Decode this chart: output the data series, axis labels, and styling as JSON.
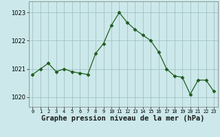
{
  "x": [
    0,
    1,
    2,
    3,
    4,
    5,
    6,
    7,
    8,
    9,
    10,
    11,
    12,
    13,
    14,
    15,
    16,
    17,
    18,
    19,
    20,
    21,
    22,
    23
  ],
  "y": [
    1020.8,
    1021.0,
    1021.2,
    1020.9,
    1021.0,
    1020.9,
    1020.85,
    1020.8,
    1021.55,
    1021.9,
    1022.55,
    1023.0,
    1022.65,
    1022.4,
    1022.2,
    1022.0,
    1021.6,
    1021.0,
    1020.75,
    1020.7,
    1020.1,
    1020.6,
    1020.6,
    1020.2
  ],
  "line_color": "#1e5c1e",
  "marker": "D",
  "marker_size": 2.5,
  "bg_color": "#cce8ea",
  "grid_color": "#99bbbb",
  "xlabel": "Graphe pression niveau de la mer (hPa)",
  "xlabel_fontsize": 7.5,
  "ylabel_ticks": [
    1020,
    1021,
    1022,
    1023
  ],
  "ylim": [
    1019.65,
    1023.4
  ],
  "xlim": [
    -0.5,
    23.5
  ],
  "xtick_labels": [
    "0",
    "1",
    "2",
    "3",
    "4",
    "5",
    "6",
    "7",
    "8",
    "9",
    "10",
    "11",
    "12",
    "13",
    "14",
    "15",
    "16",
    "17",
    "18",
    "19",
    "20",
    "21",
    "22",
    "23"
  ]
}
